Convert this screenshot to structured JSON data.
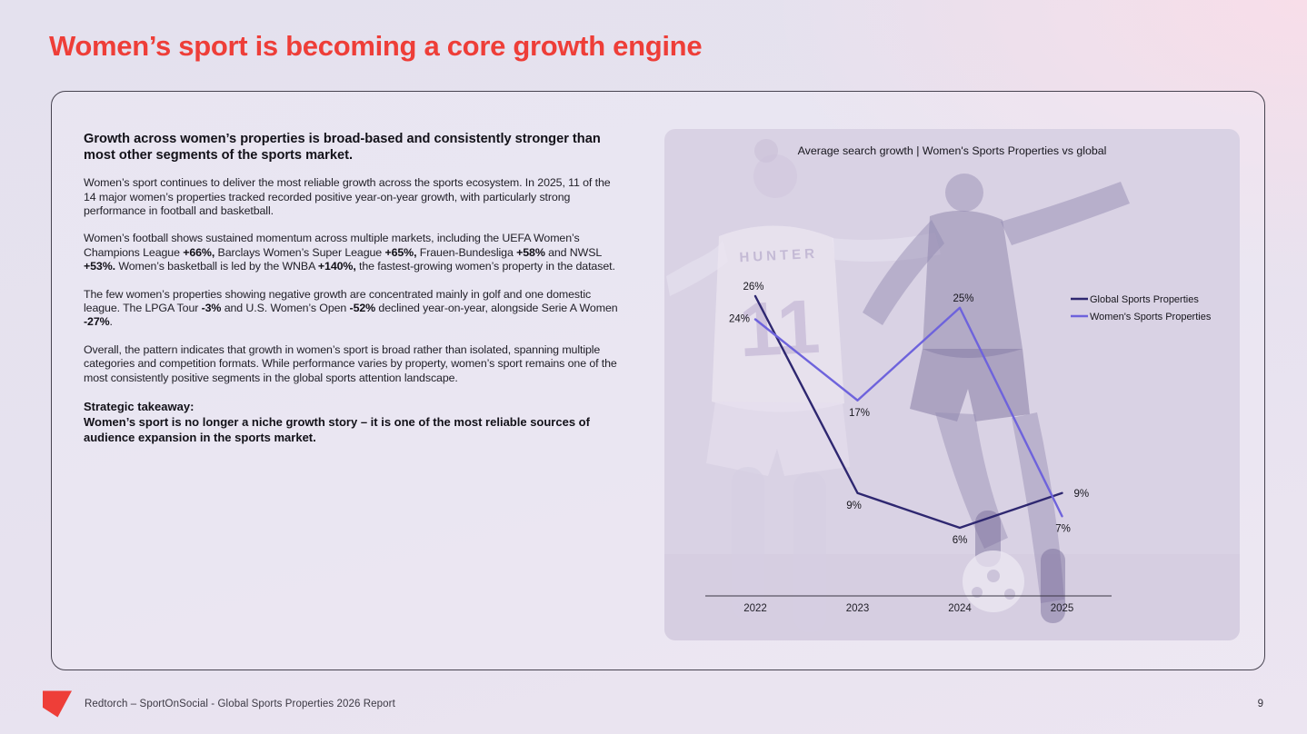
{
  "page": {
    "title": "Women’s sport is becoming a core growth engine"
  },
  "text_panel": {
    "heading": "Growth across women’s properties is broad-based and consistently stronger than most other segments of the sports market.",
    "paragraphs": [
      {
        "segments": [
          {
            "t": "Women’s sport continues to deliver the most reliable growth across the sports ecosystem. In 2025, 11 of the 14 major women’s properties tracked recorded positive year-on-year growth, with particularly strong performance in football and basketball.",
            "b": false
          }
        ]
      },
      {
        "segments": [
          {
            "t": "Women’s football shows sustained momentum across multiple markets, including the UEFA Women’s Champions League ",
            "b": false
          },
          {
            "t": "+66%,",
            "b": true
          },
          {
            "t": " Barclays Women’s Super League ",
            "b": false
          },
          {
            "t": "+65%,",
            "b": true
          },
          {
            "t": " Frauen-Bundesliga ",
            "b": false
          },
          {
            "t": "+58%",
            "b": true
          },
          {
            "t": " and NWSL ",
            "b": false
          },
          {
            "t": "+53%.",
            "b": true
          },
          {
            "t": " Women’s basketball is led by the WNBA ",
            "b": false
          },
          {
            "t": "+140%,",
            "b": true
          },
          {
            "t": " the fastest-growing women’s property in the dataset.",
            "b": false
          }
        ]
      },
      {
        "segments": [
          {
            "t": "The few women’s properties showing negative growth are concentrated mainly in golf and one domestic league. The LPGA Tour ",
            "b": false
          },
          {
            "t": "-3%",
            "b": true
          },
          {
            "t": " and U.S. Women’s Open ",
            "b": false
          },
          {
            "t": "-52%",
            "b": true
          },
          {
            "t": " declined year-on-year, alongside Serie A Women ",
            "b": false
          },
          {
            "t": "-27%",
            "b": true
          },
          {
            "t": ".",
            "b": false
          }
        ]
      },
      {
        "segments": [
          {
            "t": "Overall, the pattern indicates that growth in women’s sport is broad rather than isolated, spanning multiple categories and competition formats. While performance varies by property, women’s sport remains one of the most consistently positive segments in the global sports attention landscape.",
            "b": false
          }
        ]
      }
    ],
    "takeaway_label": "Strategic takeaway:",
    "takeaway_text": "Women’s sport is no longer a niche growth story – it is one of the most reliable sources of audience expansion in the sports market."
  },
  "chart_data": {
    "type": "line",
    "title": "Average search growth | Women's Sports Properties vs global",
    "x": [
      "2022",
      "2023",
      "2024",
      "2025"
    ],
    "series": [
      {
        "name": "Global Sports Properties",
        "color": "#2e2770",
        "values": [
          26,
          9,
          6,
          9
        ],
        "labels": [
          "26%",
          "9%",
          "6%",
          "9%"
        ]
      },
      {
        "name": "Women's Sports Properties",
        "color": "#6e63dc",
        "values": [
          24,
          17,
          25,
          7
        ],
        "labels": [
          "24%",
          "17%",
          "25%",
          "7%"
        ]
      }
    ],
    "unit": "%",
    "xlabel": "",
    "ylabel": "",
    "grid": false,
    "legend_position": "right"
  },
  "footer": {
    "text": "Redtorch – SportOnSocial - Global Sports Properties 2026 Report",
    "page_number": "9"
  }
}
